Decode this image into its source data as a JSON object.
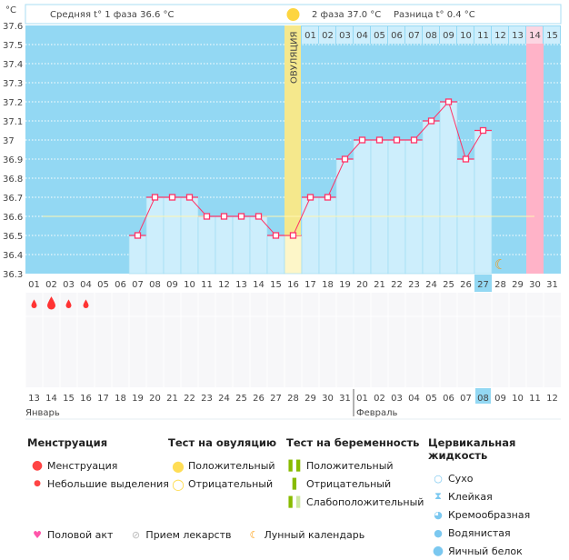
{
  "header": {
    "unit": "°C",
    "phase1": "Средняя t° 1 фаза 36.6 °C",
    "phase2": "2 фаза 37.0 °C",
    "diff": "Разница t° 0.4 °C",
    "ovulation_label": "ОВУЛЯЦИЯ"
  },
  "chart_data": {
    "type": "line",
    "ylim": [
      36.3,
      37.6
    ],
    "yticks": [
      "37.6",
      "37.5",
      "37.4",
      "37.3",
      "37.2",
      "37.1",
      "37",
      "36.9",
      "36.8",
      "36.7",
      "36.6",
      "36.5",
      "36.4",
      "36.3"
    ],
    "cycle_days": [
      "01",
      "02",
      "03",
      "04",
      "05",
      "06",
      "07",
      "08",
      "09",
      "10",
      "11",
      "12",
      "13",
      "14",
      "15",
      "16",
      "17",
      "18",
      "19",
      "20",
      "21",
      "22",
      "23",
      "24",
      "25",
      "26",
      "27",
      "28",
      "29",
      "30",
      "31"
    ],
    "temperatures": [
      null,
      null,
      null,
      null,
      null,
      null,
      36.5,
      36.7,
      36.7,
      36.7,
      36.6,
      36.6,
      36.6,
      36.6,
      36.5,
      36.5,
      36.7,
      36.7,
      36.9,
      37.0,
      37.0,
      37.0,
      37.0,
      37.1,
      37.2,
      36.9,
      37.05,
      null,
      null,
      null,
      null
    ],
    "coverline": 36.6,
    "ovulation_day": 16,
    "today_index": 27,
    "luteal_days": [
      "01",
      "02",
      "03",
      "04",
      "05",
      "06",
      "07",
      "08",
      "09",
      "10",
      "11",
      "12",
      "13",
      "14",
      "15"
    ],
    "luteal_highlight": "14",
    "menstruation": {
      "1": "small",
      "2": "large",
      "3": "small",
      "4": "small"
    },
    "moon_day": 28,
    "dates": [
      "13",
      "14",
      "15",
      "16",
      "17",
      "18",
      "19",
      "20",
      "21",
      "22",
      "23",
      "24",
      "25",
      "26",
      "27",
      "28",
      "29",
      "30",
      "31",
      "01",
      "02",
      "03",
      "04",
      "05",
      "06",
      "07",
      "08",
      "09",
      "10",
      "11",
      "12"
    ],
    "weekend_dates_idx": [
      4,
      5,
      11,
      12,
      18,
      19,
      25
    ],
    "months": [
      "Январь",
      "Февраль"
    ],
    "colors": {
      "bg": "#93d8f3",
      "bar": "#cdeefc",
      "line": "#ff3366",
      "ovulation": "#f5e88c",
      "pink": "#ffb3c8",
      "weekend": "#ff2255"
    }
  },
  "legend": {
    "menstruation": {
      "title": "Менструация",
      "items": [
        "Менструация",
        "Небольшие выделения"
      ]
    },
    "ovulation_test": {
      "title": "Тест на овуляцию",
      "items": [
        "Положительный",
        "Отрицательный"
      ]
    },
    "pregnancy_test": {
      "title": "Тест на беременность",
      "items": [
        "Положительный",
        "Отрицательный",
        "Слабоположительный"
      ]
    },
    "cervical": {
      "title": "Цервикальная жидкость",
      "items": [
        "Сухо",
        "Клейкая",
        "Кремообразная",
        "Водянистая",
        "Яичный белок"
      ]
    },
    "other": [
      "Половой акт",
      "Прием лекарств",
      "Лунный календарь"
    ]
  }
}
